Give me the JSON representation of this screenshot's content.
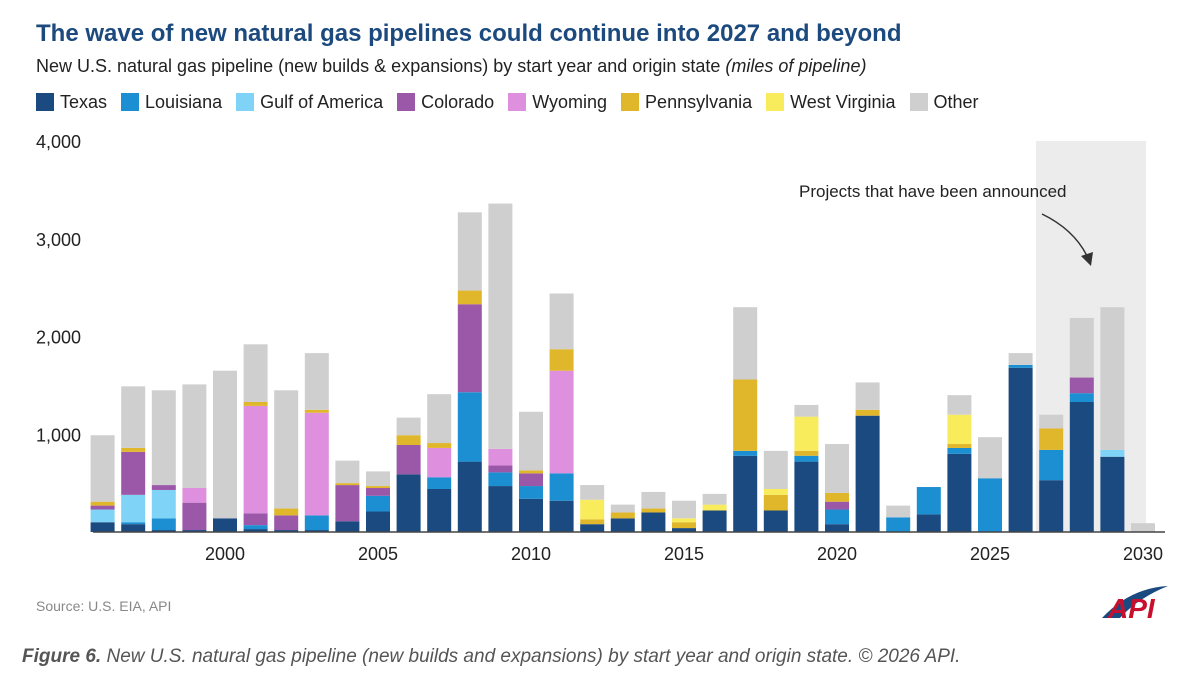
{
  "chart_data": {
    "type": "bar",
    "stacked": true,
    "title": "The wave of new natural gas pipelines could continue into 2027 and beyond",
    "subtitle": "New U.S. natural gas pipeline (new builds & expansions) by start year and origin state",
    "subtitle_unit": "(miles of pipeline)",
    "ylim": [
      0,
      4000
    ],
    "yticks": [
      "4,000",
      "3,000",
      "2,000",
      "1,000"
    ],
    "ytick_values": [
      4000,
      3000,
      2000,
      1000
    ],
    "xticks": [
      "2000",
      "2005",
      "2010",
      "2015",
      "2020",
      "2025",
      "2030"
    ],
    "xtick_values": [
      2000,
      2005,
      2010,
      2015,
      2020,
      2025,
      2030
    ],
    "grid": false,
    "legend_position": "top",
    "categories": [
      1996,
      1997,
      1998,
      1999,
      2000,
      2001,
      2002,
      2003,
      2004,
      2005,
      2006,
      2007,
      2008,
      2009,
      2010,
      2011,
      2012,
      2013,
      2014,
      2015,
      2016,
      2017,
      2018,
      2019,
      2020,
      2021,
      2022,
      2023,
      2024,
      2025,
      2026,
      2027,
      2028,
      2029,
      2030
    ],
    "series": [
      {
        "name": "Texas",
        "color": "#1b4a80",
        "values": [
          100,
          80,
          20,
          20,
          140,
          30,
          20,
          20,
          110,
          210,
          590,
          440,
          720,
          470,
          340,
          320,
          80,
          140,
          200,
          40,
          220,
          780,
          220,
          720,
          80,
          1190,
          0,
          180,
          800,
          0,
          1680,
          530,
          1330,
          770,
          0
        ]
      },
      {
        "name": "Louisiana",
        "color": "#1b8fd2",
        "values": [
          0,
          20,
          120,
          0,
          0,
          40,
          0,
          150,
          0,
          160,
          0,
          120,
          710,
          140,
          130,
          280,
          0,
          0,
          0,
          0,
          0,
          50,
          0,
          60,
          150,
          0,
          150,
          280,
          60,
          550,
          30,
          310,
          90,
          0,
          0
        ]
      },
      {
        "name": "Gulf of America",
        "color": "#7fd3f7",
        "values": [
          130,
          280,
          290,
          0,
          0,
          0,
          0,
          0,
          0,
          0,
          0,
          0,
          0,
          0,
          0,
          0,
          0,
          0,
          0,
          0,
          0,
          0,
          0,
          0,
          0,
          0,
          0,
          0,
          0,
          0,
          0,
          0,
          0,
          70,
          0
        ]
      },
      {
        "name": "Colorado",
        "color": "#9b57a8",
        "values": [
          40,
          440,
          50,
          280,
          0,
          120,
          150,
          0,
          370,
          80,
          300,
          0,
          900,
          70,
          130,
          0,
          0,
          0,
          0,
          0,
          0,
          0,
          0,
          0,
          80,
          0,
          0,
          0,
          0,
          0,
          0,
          0,
          160,
          0,
          0
        ]
      },
      {
        "name": "Wyoming",
        "color": "#de8fdd",
        "values": [
          0,
          0,
          0,
          150,
          0,
          1100,
          0,
          1050,
          0,
          0,
          0,
          300,
          0,
          170,
          0,
          1050,
          0,
          0,
          0,
          0,
          0,
          0,
          0,
          0,
          0,
          0,
          0,
          0,
          0,
          0,
          0,
          0,
          0,
          0,
          0
        ]
      },
      {
        "name": "Pennsylvania",
        "color": "#e0b62a",
        "values": [
          40,
          40,
          0,
          0,
          0,
          40,
          70,
          30,
          20,
          20,
          100,
          50,
          140,
          0,
          30,
          220,
          50,
          60,
          40,
          60,
          0,
          730,
          160,
          50,
          90,
          60,
          0,
          0,
          40,
          0,
          0,
          220,
          0,
          0,
          0
        ]
      },
      {
        "name": "West Virginia",
        "color": "#f8eb5c",
        "values": [
          0,
          0,
          0,
          0,
          0,
          0,
          0,
          0,
          0,
          0,
          0,
          0,
          0,
          0,
          0,
          0,
          200,
          0,
          0,
          40,
          60,
          0,
          60,
          350,
          0,
          0,
          0,
          0,
          300,
          0,
          0,
          0,
          0,
          0,
          0
        ]
      },
      {
        "name": "Other",
        "color": "#cfcfcf",
        "values": [
          680,
          630,
          970,
          1060,
          1510,
          590,
          1210,
          580,
          230,
          150,
          180,
          500,
          800,
          2510,
          600,
          570,
          150,
          80,
          170,
          180,
          110,
          740,
          390,
          120,
          500,
          280,
          120,
          0,
          200,
          420,
          120,
          140,
          610,
          1460,
          90
        ]
      }
    ],
    "annotations": [
      "Projects that have been announced"
    ],
    "shaded_region": {
      "x_start": 2027,
      "x_end": 2030
    }
  },
  "source": "Source: U.S. EIA, API",
  "logo_text": "API",
  "caption": {
    "label": "Figure 6.",
    "text": " New U.S. natural gas pipeline (new builds and expansions) by start year and origin state. © 2026 API."
  }
}
